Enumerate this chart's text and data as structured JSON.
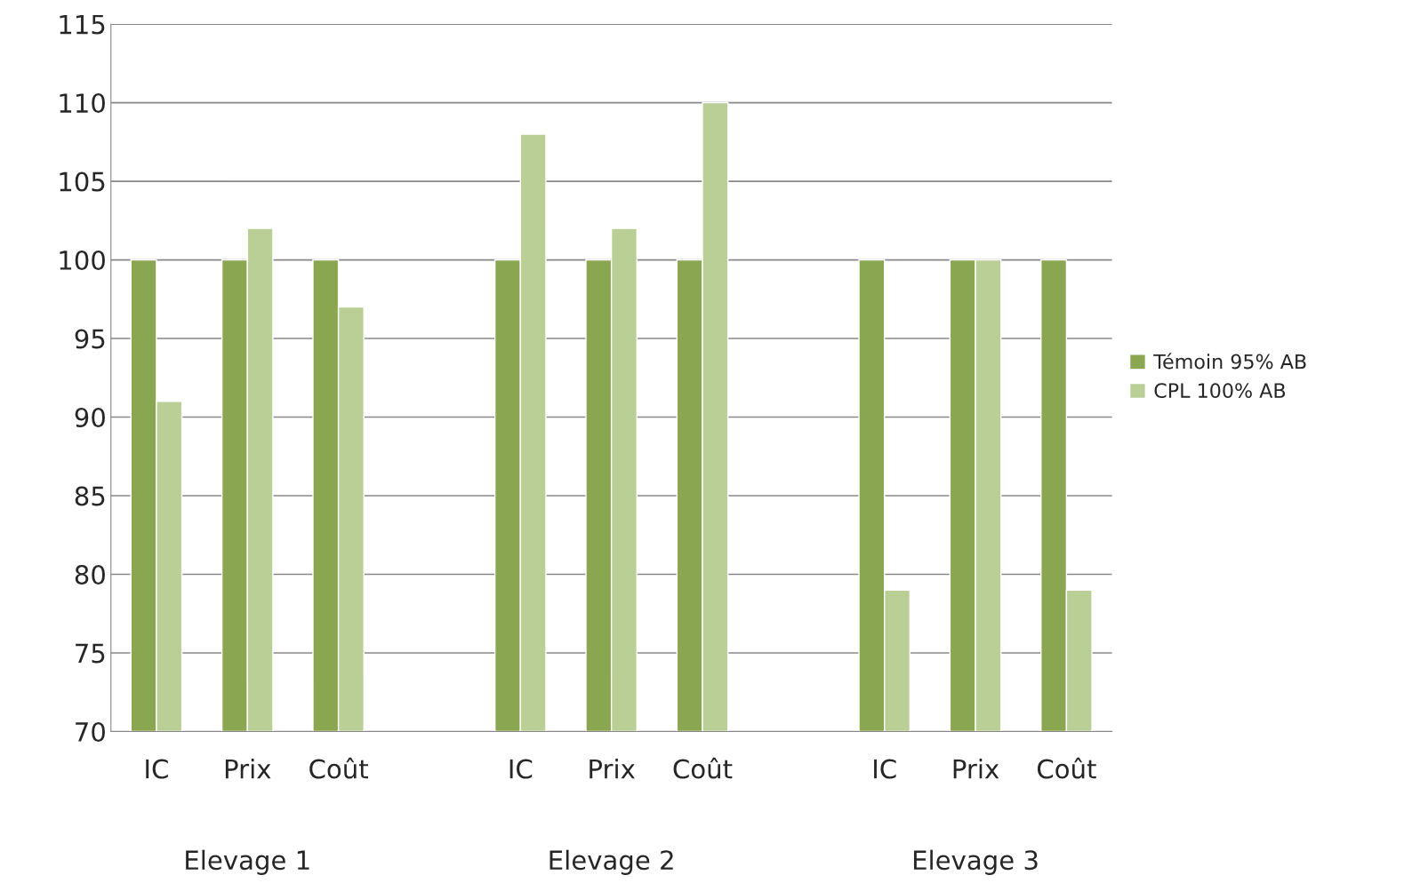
{
  "chart_data": {
    "type": "bar",
    "categories": [
      "IC",
      "Prix",
      "Coût",
      null,
      "IC",
      "Prix",
      "Coût",
      null,
      "IC",
      "Prix",
      "Coût"
    ],
    "series": [
      {
        "name": "Témoin 95% AB",
        "color": "#8aa650",
        "values": [
          100,
          100,
          100,
          null,
          100,
          100,
          100,
          null,
          100,
          100,
          100
        ]
      },
      {
        "name": "CPL 100% AB",
        "color": "#bacf96",
        "values": [
          91,
          102,
          97,
          null,
          108,
          102,
          110,
          null,
          79,
          100,
          79
        ]
      }
    ],
    "annotations": [
      "Elevage 1",
      "Elevage 2",
      "Elevage 3"
    ],
    "ylim": [
      70,
      115
    ],
    "yticks": [
      70,
      75,
      80,
      85,
      90,
      95,
      100,
      105,
      110,
      115
    ],
    "grid": "y",
    "legend": "right"
  }
}
